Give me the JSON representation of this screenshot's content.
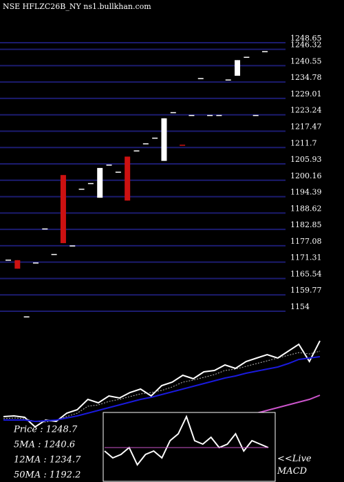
{
  "chart_data": [
    {
      "type": "candlestick",
      "title": "NSE HFLZC26B_NY ns1.bullkhan.com",
      "open": [
        1172,
        1172,
        1152,
        1171,
        1183,
        1174,
        1202,
        1177,
        1197,
        1199,
        1194,
        1205.5,
        1203,
        1208.5,
        1210.5,
        1213,
        1215,
        1207,
        1224,
        1212.5,
        1223,
        1236,
        1223,
        1223,
        1235.5,
        1237,
        1243.5,
        1223,
        1245.5
      ],
      "close": [
        1172,
        1169,
        1152,
        1171,
        1183,
        1174,
        1178,
        1177,
        1197,
        1199,
        1204.5,
        1205.5,
        1203,
        1193,
        1210.5,
        1213,
        1215,
        1222,
        1224,
        1212.5,
        1223,
        1236,
        1223,
        1223,
        1235.5,
        1242.5,
        1243.5,
        1223,
        1245.5
      ],
      "high": [
        1172,
        1172,
        1152,
        1171,
        1183,
        1174,
        1202,
        1177,
        1197,
        1199,
        1204.5,
        1205.5,
        1203,
        1208.5,
        1210.5,
        1213,
        1215,
        1222,
        1224,
        1212.5,
        1223,
        1236,
        1223,
        1223,
        1235.5,
        1242.5,
        1243.5,
        1223,
        1245.5
      ],
      "low": [
        1172,
        1169,
        1152,
        1171,
        1183,
        1174,
        1178,
        1177,
        1197,
        1199,
        1194,
        1205.5,
        1203,
        1193,
        1210.5,
        1213,
        1215,
        1207,
        1224,
        1212.5,
        1223,
        1236,
        1223,
        1223,
        1235.5,
        1237,
        1243.5,
        1223,
        1245.5
      ],
      "colors": [
        "#ffffff",
        "#cc1111",
        "#ffffff",
        "#ffffff",
        "#ffffff",
        "#ffffff",
        "#cc1111",
        "#ffffff",
        "#ffffff",
        "#ffffff",
        "#ffffff",
        "#ffffff",
        "#ffffff",
        "#cc1111",
        "#ffffff",
        "#ffffff",
        "#ffffff",
        "#ffffff",
        "#ffffff",
        "#cc1111",
        "#ffffff",
        "#ffffff",
        "#ffffff",
        "#ffffff",
        "#ffffff",
        "#ffffff",
        "#ffffff",
        "#ffffff",
        "#ffffff"
      ],
      "ylim": [
        1154,
        1248.65
      ],
      "yticks": [
        1154,
        1159.77,
        1165.54,
        1171.31,
        1177.08,
        1182.85,
        1188.62,
        1194.39,
        1200.16,
        1205.93,
        1211.7,
        1217.47,
        1223.24,
        1229.01,
        1234.78,
        1240.55,
        1246.32,
        1248.65
      ],
      "grid": true,
      "grid_color": "#1c1c70"
    },
    {
      "type": "line",
      "annotations": [
        "Price : 1248.7",
        "5MA : 1240.6",
        "12MA : 1234.7",
        "50MA : 1192.2"
      ],
      "ylim": [
        0,
        210
      ],
      "series": [
        {
          "color": "#ffffff",
          "values": [
            95,
            96,
            94,
            80,
            90,
            88,
            100,
            105,
            120,
            115,
            125,
            122,
            130,
            135,
            125,
            140,
            145,
            155,
            150,
            160,
            162,
            170,
            165,
            175,
            180,
            185,
            180,
            190,
            200,
            175,
            205
          ]
        },
        {
          "color": "#bbbbbb",
          "values": [
            92,
            93,
            92,
            88,
            87,
            90,
            95,
            100,
            110,
            112,
            117,
            120,
            124,
            128,
            130,
            133,
            138,
            145,
            148,
            152,
            156,
            162,
            164,
            168,
            172,
            176,
            180,
            184,
            188,
            186,
            190
          ]
        },
        {
          "color": "#1a1adc",
          "values": [
            90,
            90,
            90,
            88,
            89,
            90,
            93,
            96,
            100,
            104,
            108,
            112,
            116,
            120,
            123,
            127,
            131,
            135,
            139,
            143,
            147,
            151,
            154,
            158,
            161,
            164,
            167,
            172,
            178,
            180,
            182
          ]
        },
        {
          "color": "#cc55cc",
          "values": [
            null,
            null,
            null,
            null,
            null,
            null,
            null,
            null,
            null,
            null,
            48,
            50,
            53,
            56,
            60,
            64,
            68,
            72,
            76,
            80,
            84,
            88,
            92,
            96,
            100,
            104,
            108,
            112,
            116,
            120,
            126
          ]
        }
      ]
    },
    {
      "type": "macd",
      "title": "<<Live MACD",
      "ylim": [
        -1,
        1
      ],
      "series": [
        {
          "color": "#ffffff",
          "values": [
            -0.1,
            -0.3,
            -0.2,
            0,
            -0.5,
            -0.2,
            -0.1,
            -0.3,
            0.2,
            0.4,
            0.9,
            0.2,
            0.1,
            0.3,
            0,
            0.1,
            0.4,
            -0.1,
            0.2,
            0.1,
            0
          ]
        },
        {
          "color": "#cc55cc",
          "values": [
            0,
            0,
            0,
            0,
            0,
            0,
            0,
            0,
            0,
            0,
            0,
            0,
            0,
            0,
            0,
            0,
            0,
            0,
            0,
            0,
            0
          ]
        }
      ]
    }
  ]
}
